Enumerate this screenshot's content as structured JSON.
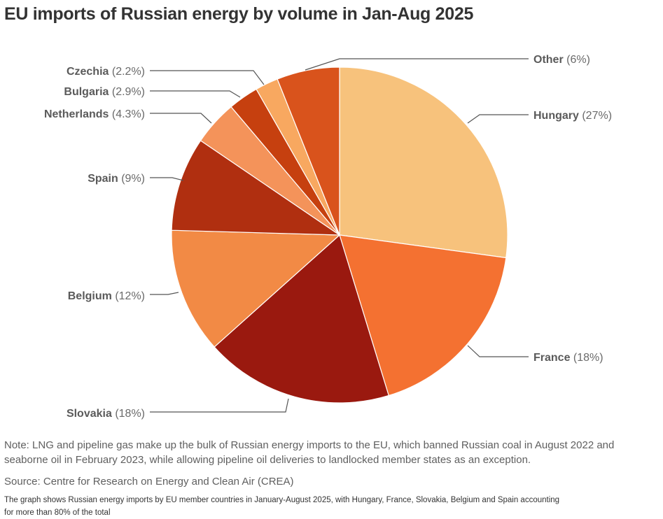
{
  "chart_data": {
    "type": "pie",
    "title": "EU imports of Russian energy by volume in Jan-Aug 2025",
    "slices": [
      {
        "label": "Hungary",
        "pct_label": "(27%)",
        "value": 27,
        "color": "#f7c27c"
      },
      {
        "label": "France",
        "pct_label": "(18%)",
        "value": 18,
        "color": "#f47131"
      },
      {
        "label": "Slovakia",
        "pct_label": "(18%)",
        "value": 18,
        "color": "#9a190f"
      },
      {
        "label": "Belgium",
        "pct_label": "(12%)",
        "value": 12,
        "color": "#f28a45"
      },
      {
        "label": "Spain",
        "pct_label": "(9%)",
        "value": 9,
        "color": "#b02f10"
      },
      {
        "label": "Netherlands",
        "pct_label": "(4.3%)",
        "value": 4.3,
        "color": "#f4935a"
      },
      {
        "label": "Bulgaria",
        "pct_label": "(2.9%)",
        "value": 2.9,
        "color": "#c6400f"
      },
      {
        "label": "Czechia",
        "pct_label": "(2.2%)",
        "value": 2.2,
        "color": "#f8a860"
      },
      {
        "label": "Other",
        "pct_label": "(6%)",
        "value": 6,
        "color": "#d9531c"
      }
    ]
  },
  "note": "Note: LNG and pipeline gas make up the bulk of Russian energy imports to the EU, which banned Russian coal in August 2022 and seaborne oil in February 2023, while allowing pipeline oil deliveries to landlocked member states as an exception.",
  "source": "Source: Centre for Research on Energy and Clean Air (CREA)",
  "caption": "The graph shows Russian energy imports by EU member countries in January-August 2025, with Hungary, France, Slovakia, Belgium and Spain accounting for more than 80% of the total"
}
